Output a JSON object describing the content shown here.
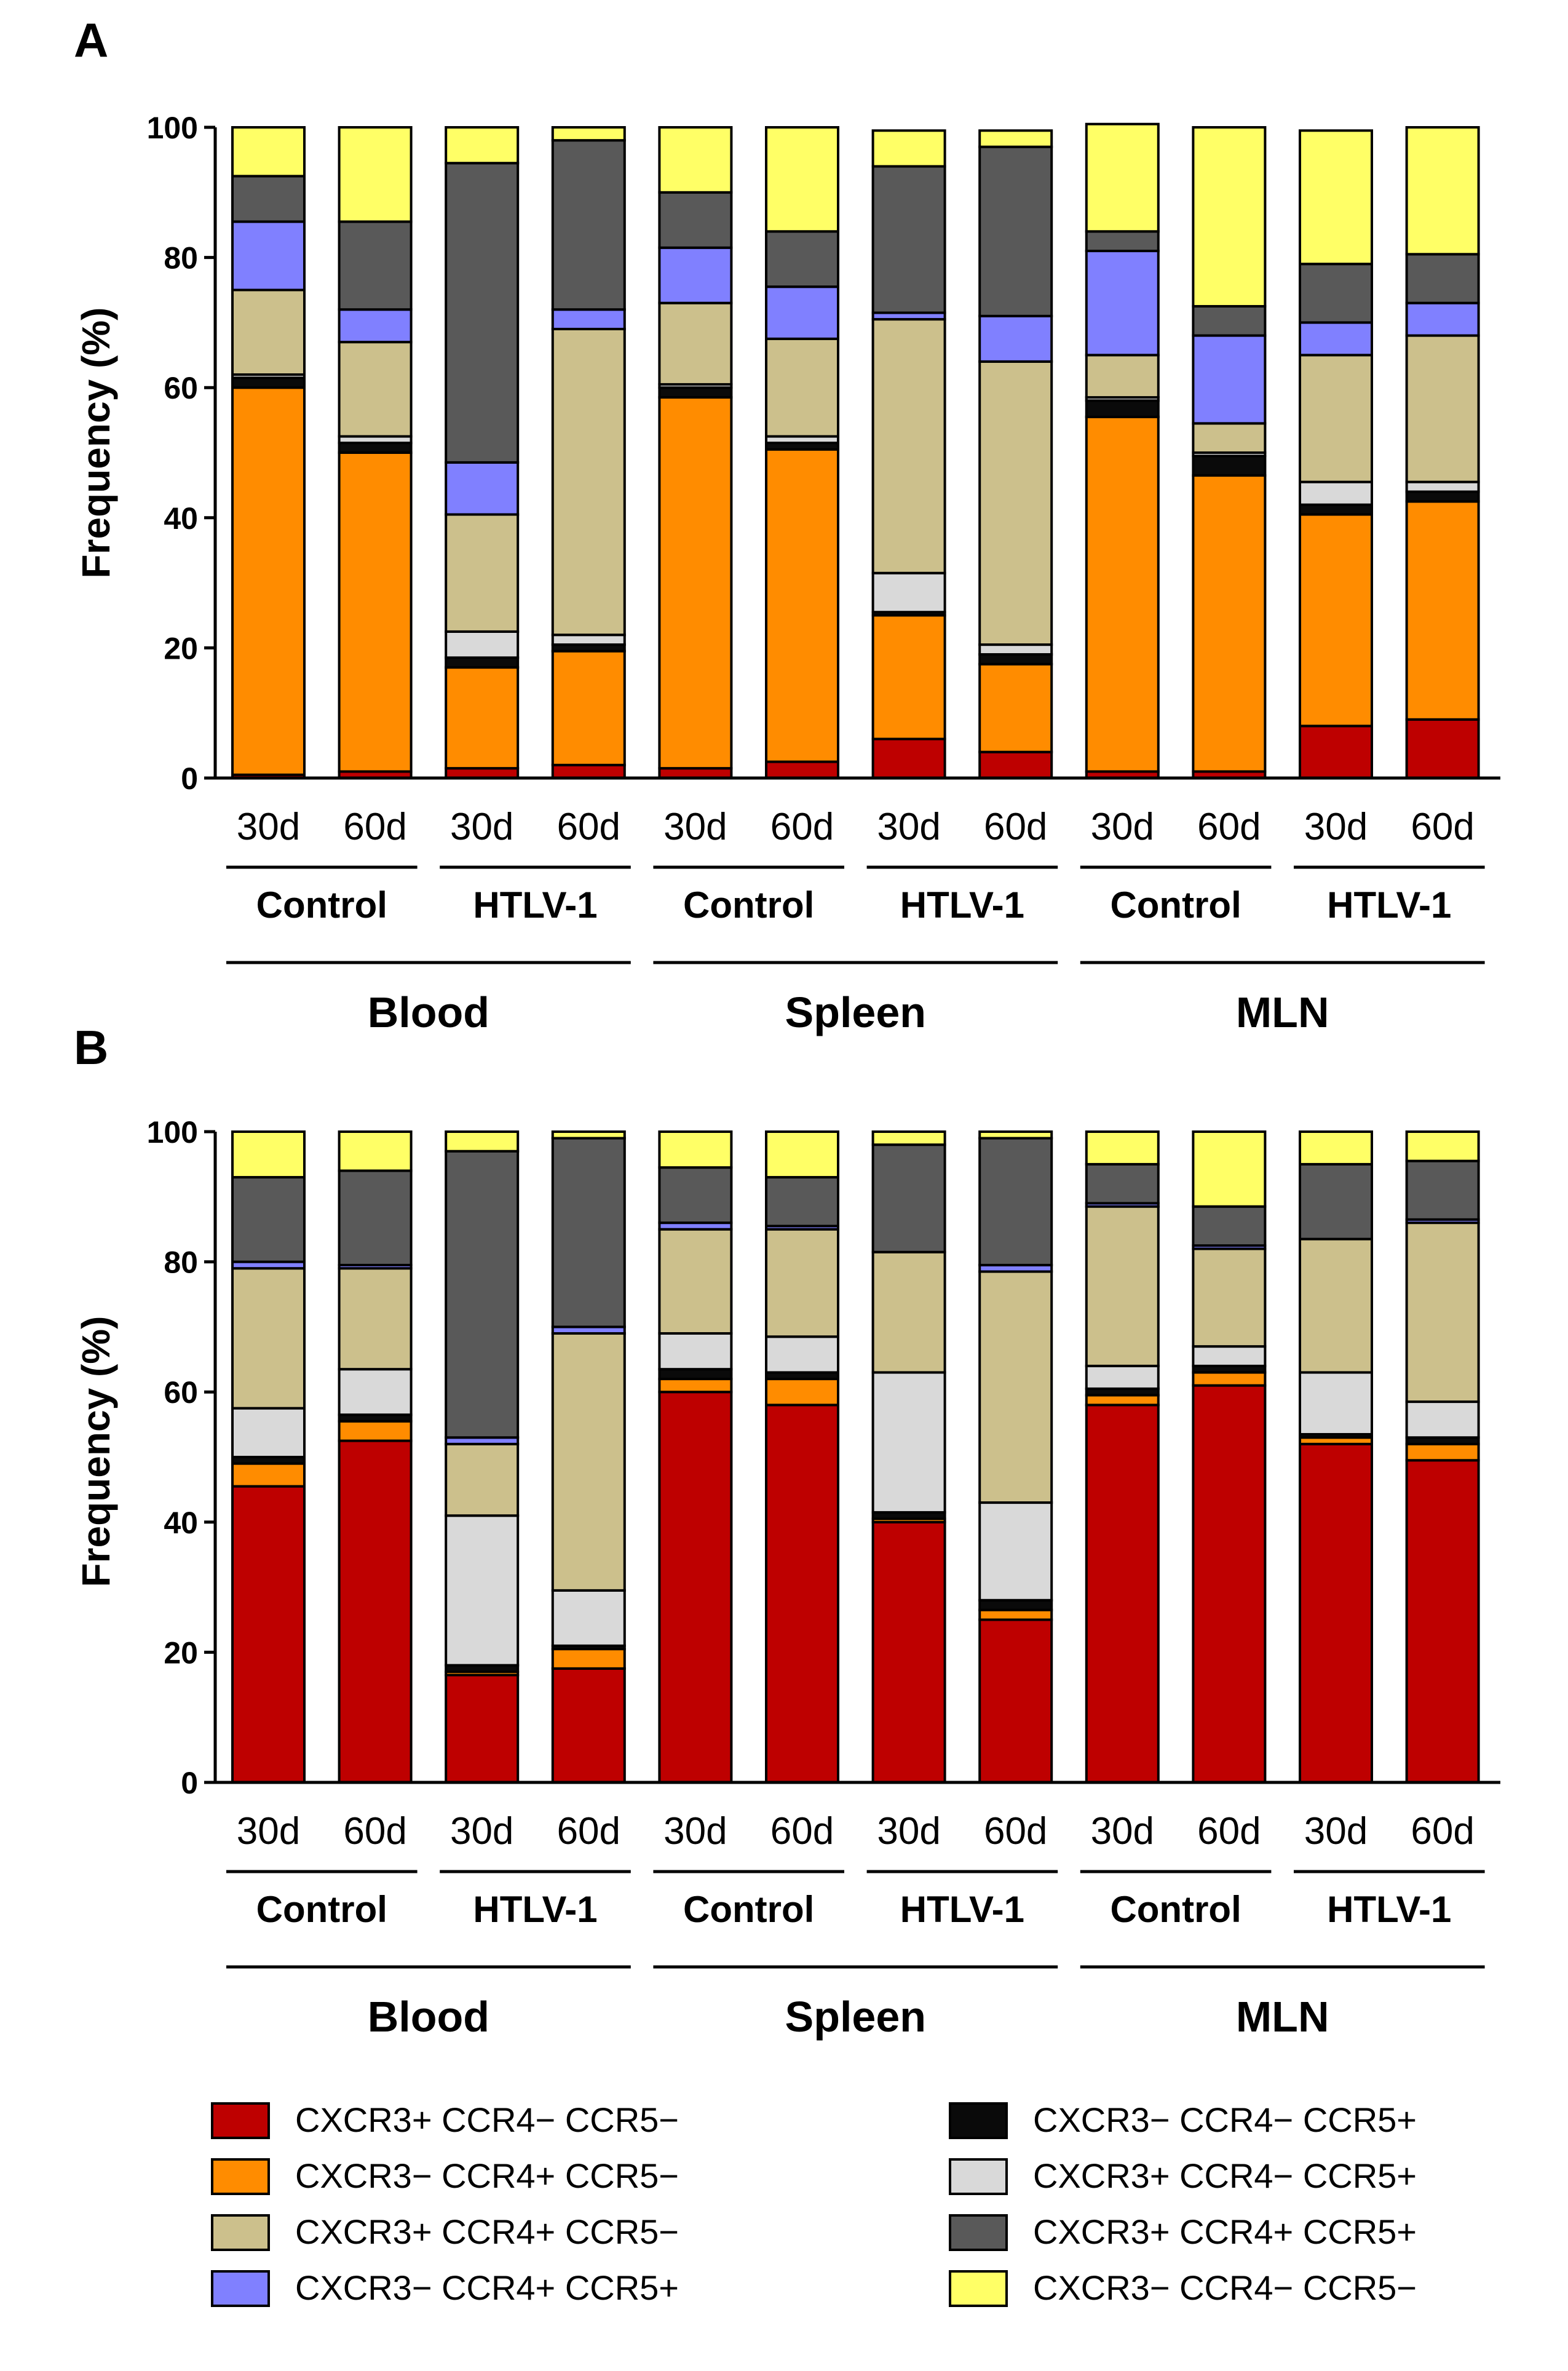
{
  "colors": {
    "CXCR3+ CCR4− CCR5−": "#BE0000",
    "CXCR3− CCR4+ CCR5−": "#FF8C00",
    "CXCR3− CCR4− CCR5+": "#0A0A0A",
    "CXCR3+ CCR4− CCR5+": "#D9D9D9",
    "CXCR3+ CCR4+ CCR5−": "#CCC08C",
    "CXCR3− CCR4+ CCR5+": "#8080FF",
    "CXCR3+ CCR4+ CCR5+": "#595959",
    "CXCR3− CCR4− CCR5−": "#FFFF66"
  },
  "stack_order": [
    "CXCR3+ CCR4− CCR5−",
    "CXCR3− CCR4+ CCR5−",
    "CXCR3− CCR4− CCR5+",
    "CXCR3+ CCR4− CCR5+",
    "CXCR3+ CCR4+ CCR5−",
    "CXCR3− CCR4+ CCR5+",
    "CXCR3+ CCR4+ CCR5+",
    "CXCR3− CCR4− CCR5−"
  ],
  "legend": {
    "left": [
      "CXCR3+ CCR4− CCR5−",
      "CXCR3− CCR4+ CCR5−",
      "CXCR3+ CCR4+ CCR5−",
      "CXCR3− CCR4+ CCR5+"
    ],
    "right": [
      "CXCR3− CCR4− CCR5+",
      "CXCR3+ CCR4− CCR5+",
      "CXCR3+ CCR4+ CCR5+",
      "CXCR3− CCR4− CCR5−"
    ]
  },
  "chart_data": [
    {
      "panel": "A",
      "type": "bar",
      "stacked": true,
      "ylabel": "Frequency (%)",
      "ylim": [
        0,
        100
      ],
      "yticks": [
        0,
        20,
        40,
        60,
        80,
        100
      ],
      "categories": [
        "30d",
        "60d",
        "30d",
        "60d",
        "30d",
        "60d",
        "30d",
        "60d",
        "30d",
        "60d",
        "30d",
        "60d"
      ],
      "groups": [
        "Control",
        "HTLV-1",
        "Control",
        "HTLV-1",
        "Control",
        "HTLV-1"
      ],
      "tissues": [
        "Blood",
        "Spleen",
        "MLN"
      ],
      "series": [
        {
          "name": "CXCR3+ CCR4− CCR5−",
          "values": [
            0.5,
            1,
            1.5,
            2,
            1.5,
            2.5,
            6,
            4,
            1,
            1,
            8,
            9
          ]
        },
        {
          "name": "CXCR3− CCR4+ CCR5−",
          "values": [
            59.5,
            49,
            15.5,
            17.5,
            57,
            48,
            19,
            13.5,
            54.5,
            45.5,
            32.5,
            33.5
          ]
        },
        {
          "name": "CXCR3− CCR4− CCR5+",
          "values": [
            1.5,
            1.5,
            1.5,
            1,
            1.5,
            1,
            0.5,
            1.5,
            2.5,
            3,
            1.5,
            1.5
          ]
        },
        {
          "name": "CXCR3+ CCR4− CCR5+",
          "values": [
            0.5,
            1,
            4,
            1.5,
            0.5,
            1,
            6,
            1.5,
            0.5,
            0.5,
            3.5,
            1.5
          ]
        },
        {
          "name": "CXCR3+ CCR4+ CCR5−",
          "values": [
            13,
            14.5,
            18,
            47,
            12.5,
            15,
            39,
            43.5,
            6.5,
            4.5,
            19.5,
            22.5
          ]
        },
        {
          "name": "CXCR3− CCR4+ CCR5+",
          "values": [
            10.5,
            5,
            8,
            3,
            8.5,
            8,
            1,
            7,
            16,
            13.5,
            5,
            5
          ]
        },
        {
          "name": "CXCR3+ CCR4+ CCR5+",
          "values": [
            7,
            13.5,
            46,
            26,
            8.5,
            8.5,
            22.5,
            26,
            3,
            4.5,
            9,
            7.5
          ]
        },
        {
          "name": "CXCR3− CCR4− CCR5−",
          "values": [
            7.5,
            14.5,
            5.5,
            2,
            10,
            16,
            5.5,
            2.5,
            16.5,
            27.5,
            20.5,
            19.5
          ]
        }
      ]
    },
    {
      "panel": "B",
      "type": "bar",
      "stacked": true,
      "ylabel": "Frequency (%)",
      "ylim": [
        0,
        100
      ],
      "yticks": [
        0,
        20,
        40,
        60,
        80,
        100
      ],
      "categories": [
        "30d",
        "60d",
        "30d",
        "60d",
        "30d",
        "60d",
        "30d",
        "60d",
        "30d",
        "60d",
        "30d",
        "60d"
      ],
      "groups": [
        "Control",
        "HTLV-1",
        "Control",
        "HTLV-1",
        "Control",
        "HTLV-1"
      ],
      "tissues": [
        "Blood",
        "Spleen",
        "MLN"
      ],
      "series": [
        {
          "name": "CXCR3+ CCR4− CCR5−",
          "values": [
            45.5,
            52.5,
            16.5,
            17.5,
            60,
            58,
            40,
            25,
            58,
            61,
            52,
            49.5
          ]
        },
        {
          "name": "CXCR3− CCR4+ CCR5−",
          "values": [
            3.5,
            3,
            0.5,
            3,
            2,
            4,
            0.5,
            1.5,
            1.5,
            2,
            1,
            2.5
          ]
        },
        {
          "name": "CXCR3− CCR4− CCR5+",
          "values": [
            1,
            1,
            1,
            0.5,
            1.5,
            1,
            1,
            1.5,
            1,
            1,
            0.5,
            1
          ]
        },
        {
          "name": "CXCR3+ CCR4− CCR5+",
          "values": [
            7.5,
            7,
            23,
            8.5,
            5.5,
            5.5,
            21.5,
            15,
            3.5,
            3,
            9.5,
            5.5
          ]
        },
        {
          "name": "CXCR3+ CCR4+ CCR5−",
          "values": [
            21.5,
            15.5,
            11,
            39.5,
            16,
            16.5,
            18.5,
            35.5,
            24.5,
            15,
            20.5,
            27.5
          ]
        },
        {
          "name": "CXCR3− CCR4+ CCR5+",
          "values": [
            1,
            0.5,
            1,
            1,
            1,
            0.5,
            0,
            1,
            0.5,
            0.5,
            0,
            0.5
          ]
        },
        {
          "name": "CXCR3+ CCR4+ CCR5+",
          "values": [
            13,
            14.5,
            44,
            29,
            8.5,
            7.5,
            16.5,
            19.5,
            6,
            6,
            11.5,
            9
          ]
        },
        {
          "name": "CXCR3− CCR4− CCR5−",
          "values": [
            7,
            6,
            3,
            1,
            5.5,
            7,
            2,
            1,
            5,
            11.5,
            5,
            4.5
          ]
        }
      ]
    }
  ]
}
